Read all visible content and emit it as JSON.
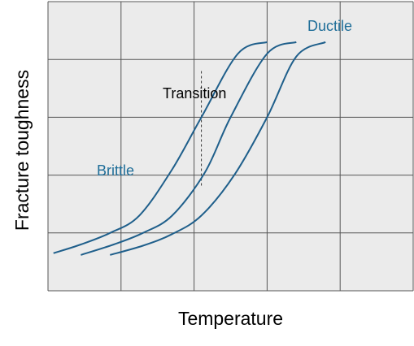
{
  "chart_data": {
    "type": "line",
    "title": "",
    "xlabel": "Temperature",
    "ylabel": "Fracture toughness",
    "xlim": [
      0,
      10
    ],
    "ylim": [
      0,
      5
    ],
    "grid": true,
    "x_grid_divisions": 5,
    "y_grid_divisions": 5,
    "tick_labels_shown": false,
    "series": [
      {
        "x": [
          0.15,
          0.9,
          1.7,
          2.5,
          3.4,
          4.2,
          5.2,
          6.0
        ],
        "values": [
          0.65,
          0.8,
          1.0,
          1.3,
          2.1,
          3.0,
          4.1,
          4.3
        ]
      },
      {
        "x": [
          0.9,
          1.8,
          2.6,
          3.4,
          4.3,
          5.0,
          6.0,
          6.8
        ],
        "values": [
          0.62,
          0.8,
          1.0,
          1.3,
          2.05,
          3.0,
          4.1,
          4.3
        ]
      },
      {
        "x": [
          1.7,
          2.6,
          3.4,
          4.2,
          5.1,
          6.0,
          6.8,
          7.6
        ],
        "values": [
          0.62,
          0.78,
          0.98,
          1.3,
          2.0,
          3.0,
          4.05,
          4.3
        ]
      }
    ],
    "annotations": {
      "transition": "Transition",
      "brittle": "Brittle",
      "ductile": "Ductile"
    },
    "transition_marker_x": 4.2,
    "transition_marker_y": [
      1.8,
      3.8
    ],
    "colors": {
      "plot_bg": "#ebebeb",
      "grid": "#555555",
      "series": "#1f5f8b",
      "label_text": "#1f6e99",
      "text": "#000000"
    }
  }
}
